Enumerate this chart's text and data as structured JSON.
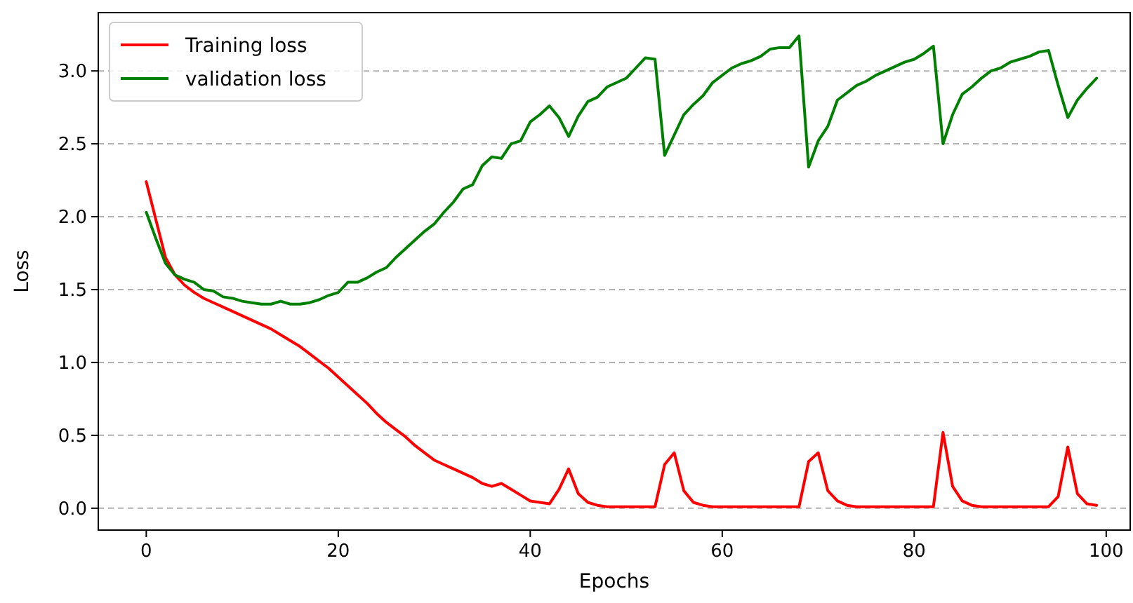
{
  "chart_data": {
    "type": "line",
    "xlabel": "Epochs",
    "ylabel": "Loss",
    "x": [
      0,
      1,
      2,
      3,
      4,
      5,
      6,
      7,
      8,
      9,
      10,
      11,
      12,
      13,
      14,
      15,
      16,
      17,
      18,
      19,
      20,
      21,
      22,
      23,
      24,
      25,
      26,
      27,
      28,
      29,
      30,
      31,
      32,
      33,
      34,
      35,
      36,
      37,
      38,
      39,
      40,
      41,
      42,
      43,
      44,
      45,
      46,
      47,
      48,
      49,
      50,
      51,
      52,
      53,
      54,
      55,
      56,
      57,
      58,
      59,
      60,
      61,
      62,
      63,
      64,
      65,
      66,
      67,
      68,
      69,
      70,
      71,
      72,
      73,
      74,
      75,
      76,
      77,
      78,
      79,
      80,
      81,
      82,
      83,
      84,
      85,
      86,
      87,
      88,
      89,
      90,
      91,
      92,
      93,
      94,
      95,
      96,
      97,
      98,
      99
    ],
    "series": [
      {
        "name": "Training loss",
        "color": "#ff0000",
        "values": [
          2.24,
          1.98,
          1.72,
          1.6,
          1.53,
          1.48,
          1.44,
          1.41,
          1.38,
          1.35,
          1.32,
          1.29,
          1.26,
          1.23,
          1.19,
          1.15,
          1.11,
          1.06,
          1.01,
          0.96,
          0.9,
          0.84,
          0.78,
          0.72,
          0.65,
          0.59,
          0.54,
          0.49,
          0.43,
          0.38,
          0.33,
          0.3,
          0.27,
          0.24,
          0.21,
          0.17,
          0.15,
          0.17,
          0.13,
          0.09,
          0.05,
          0.04,
          0.03,
          0.13,
          0.27,
          0.1,
          0.04,
          0.02,
          0.01,
          0.01,
          0.01,
          0.01,
          0.01,
          0.01,
          0.3,
          0.38,
          0.12,
          0.04,
          0.02,
          0.01,
          0.01,
          0.01,
          0.01,
          0.01,
          0.01,
          0.01,
          0.01,
          0.01,
          0.01,
          0.32,
          0.38,
          0.12,
          0.05,
          0.02,
          0.01,
          0.01,
          0.01,
          0.01,
          0.01,
          0.01,
          0.01,
          0.01,
          0.01,
          0.52,
          0.15,
          0.05,
          0.02,
          0.01,
          0.01,
          0.01,
          0.01,
          0.01,
          0.01,
          0.01,
          0.01,
          0.08,
          0.42,
          0.1,
          0.03,
          0.02
        ]
      },
      {
        "name": "validation loss",
        "color": "#008000",
        "values": [
          2.03,
          1.85,
          1.68,
          1.6,
          1.57,
          1.55,
          1.5,
          1.49,
          1.45,
          1.44,
          1.42,
          1.41,
          1.4,
          1.4,
          1.42,
          1.4,
          1.4,
          1.41,
          1.43,
          1.46,
          1.48,
          1.55,
          1.55,
          1.58,
          1.62,
          1.65,
          1.72,
          1.78,
          1.84,
          1.9,
          1.95,
          2.03,
          2.1,
          2.19,
          2.22,
          2.35,
          2.41,
          2.4,
          2.5,
          2.52,
          2.65,
          2.7,
          2.76,
          2.68,
          2.55,
          2.69,
          2.79,
          2.82,
          2.89,
          2.92,
          2.95,
          3.02,
          3.09,
          3.08,
          2.42,
          2.56,
          2.7,
          2.77,
          2.83,
          2.92,
          2.97,
          3.02,
          3.05,
          3.07,
          3.1,
          3.15,
          3.16,
          3.16,
          3.24,
          2.34,
          2.52,
          2.62,
          2.8,
          2.85,
          2.9,
          2.93,
          2.97,
          3.0,
          3.03,
          3.06,
          3.08,
          3.12,
          3.17,
          2.5,
          2.7,
          2.84,
          2.89,
          2.95,
          3.0,
          3.02,
          3.06,
          3.08,
          3.1,
          3.13,
          3.14,
          2.9,
          2.68,
          2.8,
          2.88,
          2.95
        ]
      }
    ],
    "xlim": [
      -5,
      102.5
    ],
    "xticks": [
      0,
      20,
      40,
      60,
      80,
      100
    ],
    "ylim": [
      -0.15,
      3.4
    ],
    "yticks": [
      {
        "value": 0,
        "label": "0.0"
      },
      {
        "value": 0.5,
        "label": "0.5"
      },
      {
        "value": 1,
        "label": "1.0"
      },
      {
        "value": 1.5,
        "label": "1.5"
      },
      {
        "value": 2,
        "label": "2.0"
      },
      {
        "value": 2.5,
        "label": "2.5"
      },
      {
        "value": 3,
        "label": "3.0"
      }
    ],
    "grid": "y",
    "legend": "top left",
    "line_style": "solid",
    "marker": "none"
  }
}
